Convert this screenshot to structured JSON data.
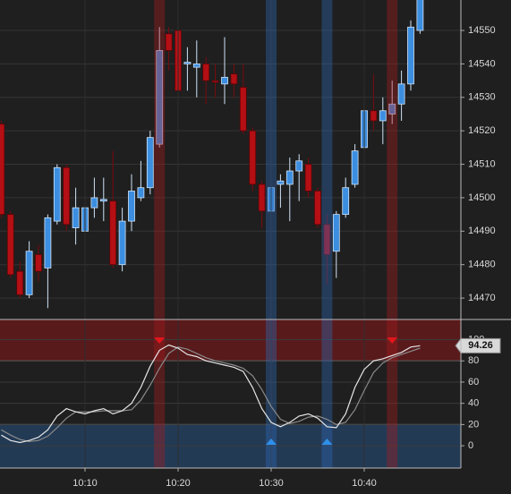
{
  "chart_data": [
    {
      "type": "candlestick",
      "open": [
        14522,
        14495,
        14478,
        14471,
        14483,
        14479,
        14493,
        14509,
        14491,
        14490,
        14497,
        14499,
        14499,
        14480,
        14493,
        14500,
        14503,
        14516,
        14549,
        14550,
        14540,
        14539,
        14540,
        14535,
        14534,
        14537,
        14533,
        14520,
        14504,
        14496,
        14504,
        14504,
        14508,
        14510,
        14502,
        14492,
        14484,
        14495,
        14504,
        14515,
        14526,
        14523,
        14525,
        14528,
        14534,
        14550
      ],
      "high": [
        14523,
        14496,
        14481,
        14487,
        14486,
        14495,
        14510,
        14510,
        14503,
        14504,
        14506,
        14506,
        14514,
        14497,
        14507,
        14511,
        14520,
        14551,
        14551,
        14556,
        14545,
        14547,
        14542,
        14540,
        14548,
        14540,
        14540,
        14521,
        14505,
        14507,
        14507,
        14512,
        14513,
        14512,
        14503,
        14495,
        14496,
        14506,
        14516,
        14536,
        14537,
        14530,
        14535,
        14538,
        14553,
        14565
      ],
      "low": [
        14494,
        14476,
        14470,
        14470,
        14475,
        14467,
        14492,
        14490,
        14486,
        14488,
        14494,
        14493,
        14479,
        14478,
        14490,
        14499,
        14501,
        14515,
        14538,
        14530,
        14532,
        14530,
        14528,
        14530,
        14528,
        14530,
        14519,
        14502,
        14491,
        14492,
        14497,
        14493,
        14499,
        14500,
        14491,
        14474,
        14476,
        14494,
        14503,
        14512,
        14520,
        14516,
        14522,
        14523,
        14532,
        14549
      ],
      "close": [
        14495,
        14477,
        14471,
        14484,
        14478,
        14494,
        14509,
        14492,
        14497,
        14497,
        14500,
        14499.5,
        14480,
        14493,
        14502,
        14503,
        14518,
        14544,
        14544,
        14532,
        14540.5,
        14540,
        14535,
        14534.5,
        14536,
        14534,
        14520,
        14504,
        14496,
        14503,
        14505,
        14508,
        14511,
        14502,
        14492,
        14483,
        14495,
        14503,
        14514,
        14526,
        14523,
        14526,
        14528,
        14534,
        14551,
        14562
      ],
      "up_color": "#3c8ee0",
      "down_color": "#b40f14",
      "ylim": [
        14463.6,
        14559.1
      ],
      "yticks": [
        14470,
        14480,
        14490,
        14500,
        14510,
        14520,
        14530,
        14540,
        14550
      ],
      "grid": true
    },
    {
      "type": "line",
      "categories": [
        null,
        null,
        null,
        null,
        null,
        null,
        null,
        null,
        null,
        "10:10",
        null,
        null,
        null,
        null,
        null,
        null,
        null,
        null,
        null,
        "10:20",
        null,
        null,
        null,
        null,
        null,
        null,
        null,
        null,
        null,
        "10:30",
        null,
        null,
        null,
        null,
        null,
        null,
        null,
        null,
        null,
        "10:40",
        null,
        null,
        null,
        null,
        null,
        null
      ],
      "series": [
        {
          "color": "#e6e6e6",
          "values": [
            10,
            5,
            3,
            5,
            8,
            15,
            28,
            35,
            32,
            30,
            33,
            35,
            30,
            33,
            40,
            55,
            75,
            90,
            95,
            92,
            86,
            84,
            80,
            78,
            76,
            74,
            70,
            55,
            35,
            22,
            18,
            22,
            28,
            30,
            26,
            18,
            17,
            30,
            55,
            72,
            80,
            82,
            85,
            88,
            93,
            94.26
          ]
        },
        {
          "color": "#8a8a8a",
          "values": [
            15,
            10,
            6,
            4,
            5,
            9,
            17,
            26,
            32,
            32,
            32,
            33,
            33,
            33,
            34,
            43,
            57,
            73,
            87,
            93,
            91,
            87,
            83,
            80,
            78,
            76,
            73,
            66,
            53,
            37,
            25,
            21,
            23,
            27,
            28,
            25,
            20,
            22,
            34,
            52,
            69,
            78,
            83,
            86,
            89,
            92
          ]
        }
      ],
      "overbought": 80,
      "oversold": 20,
      "sell_signals": [
        17,
        42
      ],
      "buy_signals": [
        29,
        35
      ],
      "ylim": [
        -21,
        119
      ],
      "yticks": [
        0,
        20,
        40,
        60,
        80,
        100
      ],
      "grid": true
    }
  ]
}
